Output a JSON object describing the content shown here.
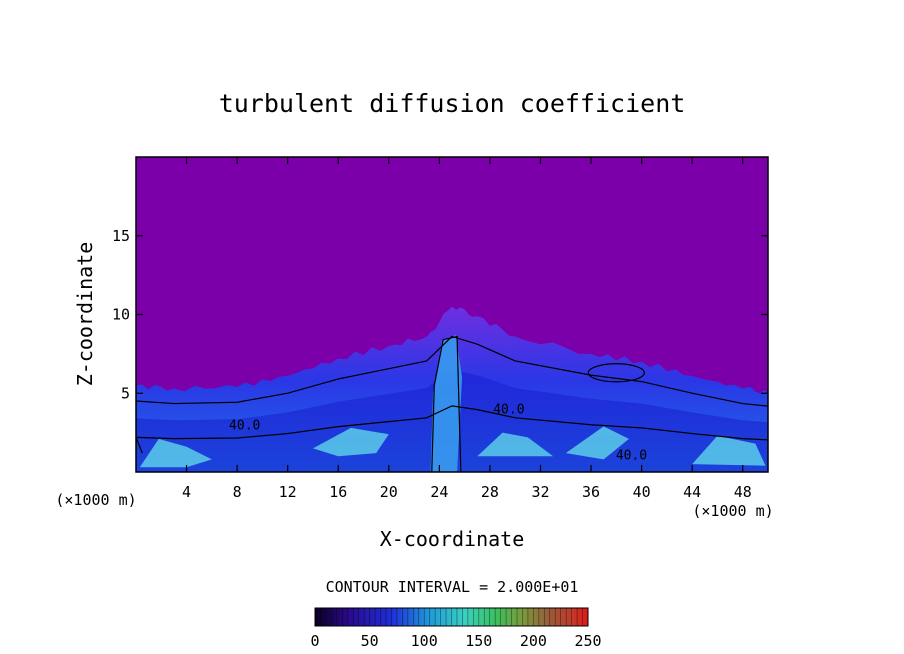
{
  "chart_data": {
    "type": "heatmap",
    "title": "turbulent diffusion coefficient",
    "xlabel": "X-coordinate",
    "ylabel": "Z-coordinate",
    "x_unit": "(×1000 m)",
    "x_unit_right": "(×1000 m)",
    "xlim": [
      0,
      50
    ],
    "ylim": [
      0,
      20
    ],
    "x_ticks": [
      "4",
      "8",
      "12",
      "16",
      "20",
      "24",
      "28",
      "32",
      "36",
      "40",
      "44",
      "48"
    ],
    "x_tick_values": [
      4,
      8,
      12,
      16,
      20,
      24,
      28,
      32,
      36,
      40,
      44,
      48
    ],
    "y_ticks": [
      "5",
      "10",
      "15"
    ],
    "y_tick_values": [
      5,
      10,
      15
    ],
    "contour_interval_text": "CONTOUR INTERVAL = 2.000E+01",
    "contour_interval": 20,
    "contour_labels": [
      {
        "text": "40.0",
        "x": 8.6,
        "z": 2.7
      },
      {
        "text": "40.0",
        "x": 29.5,
        "z": 3.7
      },
      {
        "text": "40.0",
        "x": 39.2,
        "z": 0.8
      }
    ],
    "cloud_top_profile": [
      {
        "x": 0,
        "z": 5.5
      },
      {
        "x": 3,
        "z": 5.3
      },
      {
        "x": 8,
        "z": 5.4
      },
      {
        "x": 12,
        "z": 6.1
      },
      {
        "x": 16,
        "z": 7.2
      },
      {
        "x": 20,
        "z": 8.0
      },
      {
        "x": 23,
        "z": 8.6
      },
      {
        "x": 25,
        "z": 10.5
      },
      {
        "x": 27,
        "z": 9.9
      },
      {
        "x": 30,
        "z": 8.6
      },
      {
        "x": 36,
        "z": 7.5
      },
      {
        "x": 40,
        "z": 7.0
      },
      {
        "x": 44,
        "z": 6.1
      },
      {
        "x": 48,
        "z": 5.3
      },
      {
        "x": 50,
        "z": 5.1
      }
    ],
    "colorbar": {
      "ticks": [
        "0",
        "50",
        "100",
        "150",
        "200",
        "250"
      ],
      "tick_values": [
        0,
        50,
        100,
        150,
        200,
        250
      ],
      "range": [
        0,
        250
      ]
    },
    "colors": {
      "background_field": "#7b00aa",
      "low": "#1a2bd8",
      "mid": "#2f8df0",
      "high": "#6fe0e6",
      "contour": "#000000"
    },
    "grid": false
  }
}
